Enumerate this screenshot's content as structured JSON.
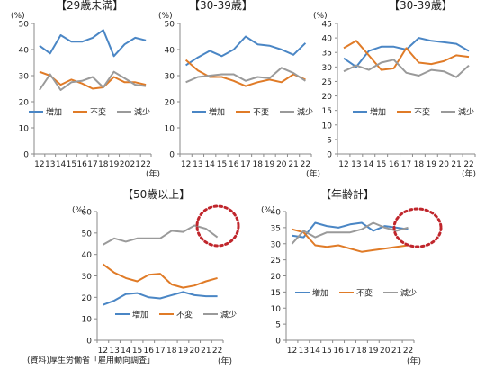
{
  "source_note": "(資料)厚生労働省「雇用動向調査」",
  "charts": [
    {
      "title": "【29歳未満】",
      "chart_data": {
        "type": "line",
        "x": [
          "12",
          "13",
          "14",
          "15",
          "16",
          "17",
          "18",
          "19",
          "20",
          "21",
          "22"
        ],
        "x_unit": "(年)",
        "y_unit": "(%)",
        "ylim": [
          0,
          50
        ],
        "yticks": [
          0,
          10,
          20,
          30,
          40,
          50
        ],
        "series": [
          {
            "name": "増加",
            "values": [
              41.5,
              38.5,
              45.5,
              43.0,
              43.0,
              44.5,
              47.5,
              37.5,
              42.0,
              44.5,
              43.5
            ]
          },
          {
            "name": "不変",
            "values": [
              31.5,
              30.0,
              26.5,
              28.5,
              27.0,
              25.0,
              25.5,
              29.5,
              27.5,
              27.5,
              26.5
            ]
          },
          {
            "name": "減少",
            "values": [
              24.5,
              30.5,
              24.5,
              27.5,
              28.0,
              29.5,
              25.5,
              31.5,
              29.0,
              26.5,
              26.0
            ]
          }
        ]
      }
    },
    {
      "title": "【30-39歳】",
      "chart_data": {
        "type": "line",
        "x": [
          "12",
          "13",
          "14",
          "15",
          "16",
          "17",
          "18",
          "19",
          "20",
          "21",
          "22"
        ],
        "x_unit": "(年)",
        "y_unit": "(%)",
        "ylim": [
          0,
          50
        ],
        "yticks": [
          0,
          10,
          20,
          30,
          40,
          50
        ],
        "series": [
          {
            "name": "増加",
            "values": [
              34.0,
              37.0,
              39.5,
              37.5,
              40.0,
              45.0,
              42.0,
              41.5,
              40.0,
              38.0,
              42.5
            ]
          },
          {
            "name": "不変",
            "values": [
              36.0,
              32.0,
              29.5,
              29.5,
              28.0,
              26.0,
              27.5,
              28.5,
              27.5,
              30.5,
              28.5
            ]
          },
          {
            "name": "減少",
            "values": [
              27.5,
              29.5,
              30.0,
              30.5,
              30.5,
              28.0,
              29.5,
              29.0,
              33.0,
              31.0,
              28.0
            ]
          }
        ]
      }
    },
    {
      "title": "【30-39歳】",
      "chart_data": {
        "type": "line",
        "x": [
          "12",
          "13",
          "14",
          "15",
          "16",
          "17",
          "18",
          "19",
          "20",
          "21",
          "22"
        ],
        "x_unit": "(年)",
        "y_unit": "(%)",
        "ylim": [
          0,
          45
        ],
        "yticks": [
          0,
          5,
          10,
          15,
          20,
          25,
          30,
          35,
          40,
          45
        ],
        "series": [
          {
            "name": "増加",
            "values": [
              33.0,
              30.0,
              35.5,
              37.0,
              37.0,
              36.0,
              40.0,
              39.0,
              38.5,
              38.0,
              35.5
            ]
          },
          {
            "name": "不変",
            "values": [
              36.5,
              39.0,
              34.0,
              29.0,
              29.5,
              36.5,
              31.5,
              31.0,
              32.0,
              34.0,
              33.5
            ]
          },
          {
            "name": "減少",
            "values": [
              28.5,
              30.5,
              29.0,
              31.5,
              32.5,
              28.0,
              27.0,
              29.0,
              28.5,
              26.5,
              30.5
            ]
          }
        ]
      }
    },
    {
      "title": "【50歳以上】",
      "chart_data": {
        "type": "line",
        "x": [
          "12",
          "13",
          "14",
          "15",
          "16",
          "17",
          "18",
          "19",
          "20",
          "21",
          "22"
        ],
        "x_unit": "(年)",
        "y_unit": "(%)",
        "ylim": [
          0,
          60
        ],
        "yticks": [
          0,
          10,
          20,
          30,
          40,
          50,
          60
        ],
        "series": [
          {
            "name": "増加",
            "values": [
              16.5,
              18.5,
              21.5,
              22.0,
              20.0,
              19.5,
              21.0,
              22.5,
              21.0,
              20.5,
              20.5
            ]
          },
          {
            "name": "不変",
            "values": [
              35.5,
              31.5,
              29.0,
              27.5,
              30.5,
              31.0,
              26.0,
              24.5,
              25.5,
              27.5,
              29.0
            ]
          },
          {
            "name": "減少",
            "values": [
              44.5,
              47.5,
              46.0,
              47.5,
              47.5,
              47.5,
              51.0,
              50.5,
              53.5,
              52.0,
              48.0
            ]
          }
        ]
      }
    },
    {
      "title": "【年齢計】",
      "chart_data": {
        "type": "line",
        "x": [
          "12",
          "13",
          "14",
          "15",
          "16",
          "17",
          "18",
          "19",
          "20",
          "21",
          "22"
        ],
        "x_unit": "(年)",
        "y_unit": "(%)",
        "ylim": [
          0,
          40
        ],
        "yticks": [
          0,
          5,
          10,
          15,
          20,
          25,
          30,
          35,
          40
        ],
        "series": [
          {
            "name": "増加",
            "values": [
              32.5,
              32.0,
              36.5,
              35.5,
              35.0,
              36.0,
              36.5,
              34.0,
              35.5,
              35.0,
              34.5
            ]
          },
          {
            "name": "不変",
            "values": [
              34.5,
              33.5,
              29.5,
              29.0,
              29.5,
              28.5,
              27.5,
              28.0,
              28.5,
              29.0,
              29.5
            ]
          },
          {
            "name": "減少",
            "values": [
              30.0,
              34.0,
              32.0,
              33.5,
              33.5,
              33.5,
              34.5,
              36.5,
              35.0,
              34.0,
              35.0
            ]
          }
        ]
      }
    }
  ],
  "series_colors": {
    "増加": "#4a86c5",
    "不変": "#e07b27",
    "減少": "#9a9a9a"
  },
  "highlight_color": "#c0262c"
}
